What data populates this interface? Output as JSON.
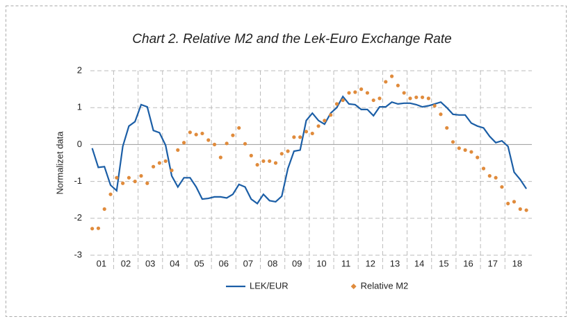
{
  "chart_data": {
    "type": "line-scatter",
    "title": "Chart 2. Relative M2 and the Lek-Euro Exchange Rate",
    "y_label": "Normalizet data",
    "x": [
      2001.125,
      2001.375,
      2001.625,
      2001.875,
      2002.125,
      2002.375,
      2002.625,
      2002.875,
      2003.125,
      2003.375,
      2003.625,
      2003.875,
      2004.125,
      2004.375,
      2004.625,
      2004.875,
      2005.125,
      2005.375,
      2005.625,
      2005.875,
      2006.125,
      2006.375,
      2006.625,
      2006.875,
      2007.125,
      2007.375,
      2007.625,
      2007.875,
      2008.125,
      2008.375,
      2008.625,
      2008.875,
      2009.125,
      2009.375,
      2009.625,
      2009.875,
      2010.125,
      2010.375,
      2010.625,
      2010.875,
      2011.125,
      2011.375,
      2011.625,
      2011.875,
      2012.125,
      2012.375,
      2012.625,
      2012.875,
      2013.125,
      2013.375,
      2013.625,
      2013.875,
      2014.125,
      2014.375,
      2014.625,
      2014.875,
      2015.125,
      2015.375,
      2015.625,
      2015.875,
      2016.125,
      2016.375,
      2016.625,
      2016.875,
      2017.125,
      2017.375,
      2017.625,
      2017.875,
      2018.125,
      2018.375,
      2018.625,
      2018.875
    ],
    "series": [
      {
        "name": "LEK/EUR",
        "kind": "line",
        "color": "#1b5ea6",
        "values": [
          -0.1,
          -0.62,
          -0.6,
          -1.1,
          -1.25,
          -0.05,
          0.5,
          0.62,
          1.08,
          1.02,
          0.38,
          0.32,
          -0.02,
          -0.85,
          -1.15,
          -0.9,
          -0.9,
          -1.15,
          -1.48,
          -1.46,
          -1.42,
          -1.42,
          -1.45,
          -1.35,
          -1.08,
          -1.15,
          -1.48,
          -1.6,
          -1.35,
          -1.52,
          -1.55,
          -1.4,
          -0.65,
          -0.18,
          -0.15,
          0.65,
          0.85,
          0.65,
          0.55,
          0.85,
          1.0,
          1.3,
          1.1,
          1.08,
          0.95,
          0.95,
          0.78,
          1.02,
          1.02,
          1.15,
          1.1,
          1.12,
          1.12,
          1.08,
          1.02,
          1.05,
          1.1,
          1.15,
          1.0,
          0.82,
          0.8,
          0.8,
          0.58,
          0.5,
          0.45,
          0.22,
          0.05,
          0.1,
          -0.05,
          -0.75,
          -0.95,
          -1.2
        ]
      },
      {
        "name": "Relative M2",
        "kind": "dots",
        "color": "#e08b3c",
        "values": [
          -2.28,
          -2.27,
          -1.75,
          -1.35,
          -0.9,
          -1.05,
          -0.9,
          -1.0,
          -0.85,
          -1.05,
          -0.6,
          -0.5,
          -0.45,
          -0.7,
          -0.15,
          0.05,
          0.33,
          0.27,
          0.3,
          0.12,
          0.0,
          -0.35,
          0.03,
          0.25,
          0.45,
          0.02,
          -0.3,
          -0.55,
          -0.45,
          -0.45,
          -0.5,
          -0.25,
          -0.18,
          0.2,
          0.2,
          0.35,
          0.3,
          0.5,
          0.65,
          0.8,
          1.1,
          1.2,
          1.4,
          1.42,
          1.5,
          1.4,
          1.2,
          1.25,
          1.7,
          1.85,
          1.6,
          1.4,
          1.25,
          1.28,
          1.28,
          1.25,
          1.05,
          0.82,
          0.45,
          0.07,
          -0.1,
          -0.15,
          -0.2,
          -0.35,
          -0.65,
          -0.85,
          -0.9,
          -1.15,
          -1.6,
          -1.55,
          -1.75,
          -1.78
        ]
      }
    ],
    "xlim": [
      2001.05,
      2019.1
    ],
    "xticks": [
      {
        "value": 2001.5,
        "label": "01"
      },
      {
        "value": 2002.5,
        "label": "02"
      },
      {
        "value": 2003.5,
        "label": "03"
      },
      {
        "value": 2004.5,
        "label": "04"
      },
      {
        "value": 2005.5,
        "label": "05"
      },
      {
        "value": 2006.5,
        "label": "06"
      },
      {
        "value": 2007.5,
        "label": "07"
      },
      {
        "value": 2008.5,
        "label": "08"
      },
      {
        "value": 2009.5,
        "label": "09"
      },
      {
        "value": 2010.5,
        "label": "10"
      },
      {
        "value": 2011.5,
        "label": "11"
      },
      {
        "value": 2012.5,
        "label": "12"
      },
      {
        "value": 2013.5,
        "label": "13"
      },
      {
        "value": 2014.5,
        "label": "14"
      },
      {
        "value": 2015.5,
        "label": "15"
      },
      {
        "value": 2016.5,
        "label": "16"
      },
      {
        "value": 2017.5,
        "label": "17"
      },
      {
        "value": 2018.5,
        "label": "18"
      }
    ],
    "ylim": [
      -3,
      2
    ],
    "yticks": [
      2,
      1,
      0,
      -1,
      -2,
      -3
    ],
    "grid": true
  }
}
